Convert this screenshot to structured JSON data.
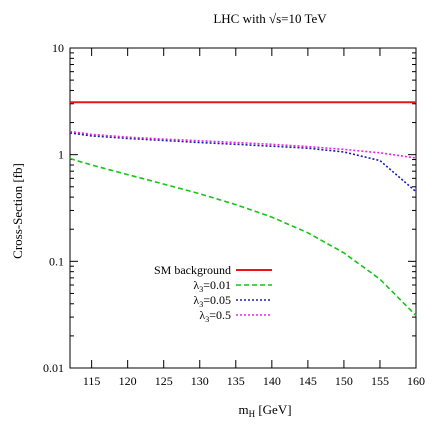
{
  "chart_data": {
    "type": "line",
    "title": "LHC with √s=10 TeV",
    "xlabel": {
      "main": "m",
      "sub": "H",
      "unit": " [GeV]"
    },
    "ylabel": "Cross-Section [fb]",
    "xlim": [
      112,
      160
    ],
    "ylim": [
      0.01,
      10
    ],
    "yscale": "log",
    "x_ticks": [
      115,
      120,
      125,
      130,
      135,
      140,
      145,
      150,
      155,
      160
    ],
    "y_ticks": [
      {
        "value": 0.01,
        "label": "0.01"
      },
      {
        "value": 0.1,
        "label": "0.1"
      },
      {
        "value": 1,
        "label": "1"
      },
      {
        "value": 10,
        "label": "10"
      }
    ],
    "legend_position": "bottom-center",
    "x": [
      112,
      115,
      120,
      125,
      130,
      135,
      140,
      145,
      150,
      155,
      160
    ],
    "series": [
      {
        "name": {
          "text": "SM background"
        },
        "color": "#e8161b",
        "dash": "solid",
        "values": [
          3.1,
          3.1,
          3.1,
          3.1,
          3.1,
          3.1,
          3.1,
          3.1,
          3.1,
          3.1,
          3.1
        ]
      },
      {
        "name": {
          "sym": "λ",
          "sub": "3",
          "text": "=0.01"
        },
        "color": "#17c417",
        "dash": "dashed",
        "values": [
          0.92,
          0.8,
          0.65,
          0.53,
          0.43,
          0.34,
          0.26,
          0.185,
          0.12,
          0.068,
          0.031
        ]
      },
      {
        "name": {
          "sym": "λ",
          "sub": "3",
          "text": "=0.05"
        },
        "color": "#1b1bb4",
        "dash": "dotted",
        "values": [
          1.6,
          1.5,
          1.42,
          1.36,
          1.3,
          1.25,
          1.2,
          1.15,
          1.06,
          0.88,
          0.45
        ]
      },
      {
        "name": {
          "sym": "λ",
          "sub": "3",
          "text": "=0.5"
        },
        "color": "#ee22ee",
        "dash": "dotted",
        "values": [
          1.65,
          1.55,
          1.46,
          1.4,
          1.35,
          1.3,
          1.25,
          1.19,
          1.12,
          1.04,
          0.93
        ]
      }
    ]
  }
}
